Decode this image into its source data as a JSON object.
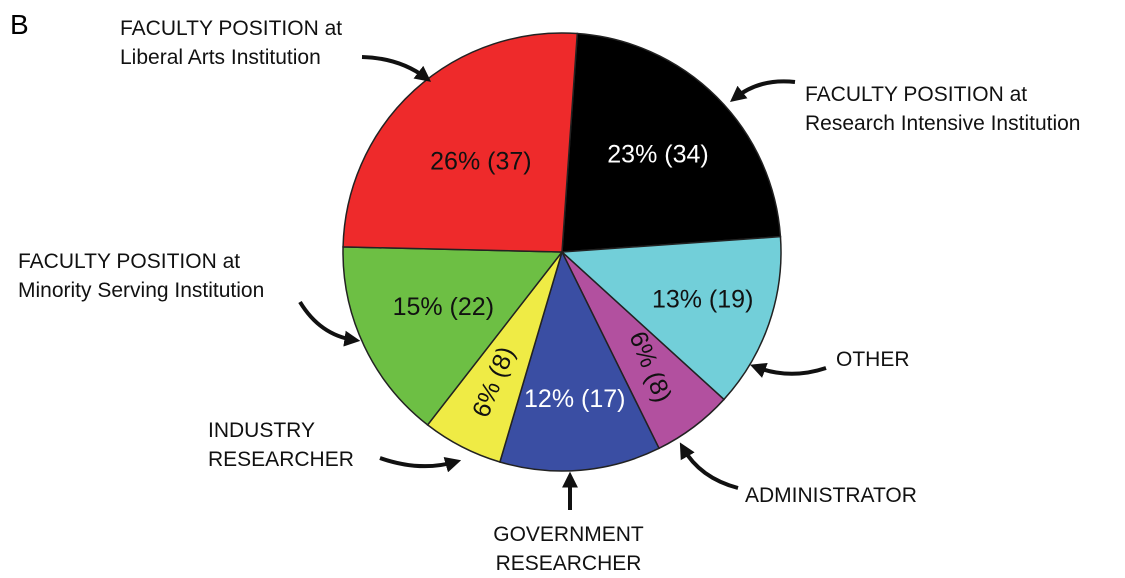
{
  "chart_data": {
    "type": "pie",
    "panel_label": "B",
    "categories": [
      "FACULTY POSITION at\nResearch Intensive Institution",
      "OTHER",
      "ADMINISTRATOR",
      "GOVERNMENT\nRESEARCHER",
      "INDUSTRY\nRESEARCHER",
      "FACULTY POSITION at\nMinority Serving Institution",
      "FACULTY POSITION at\nLiberal Arts Institution"
    ],
    "values": [
      23,
      13,
      6,
      12,
      6,
      15,
      26
    ],
    "value_labels": [
      "23% (34)",
      "13% (19)",
      "6% (8)",
      "12% (17)",
      "6% (8)",
      "15% (22)",
      "26% (37)"
    ],
    "colors": [
      "#000000",
      "#72cfd9",
      "#b2509f",
      "#3a4ea3",
      "#efeb45",
      "#6dbf44",
      "#ee2a2b"
    ]
  }
}
